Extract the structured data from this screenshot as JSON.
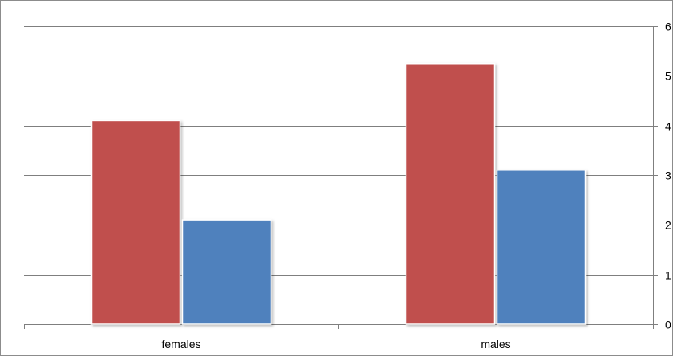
{
  "chart_data": {
    "type": "bar",
    "categories": [
      "females",
      "males"
    ],
    "series": [
      {
        "values": [
          4.1,
          5.25
        ],
        "color": "#c0504d"
      },
      {
        "values": [
          2.1,
          3.1
        ],
        "color": "#4f81bd"
      }
    ],
    "ylim": [
      0,
      6
    ],
    "yticks": [
      "0",
      "1",
      "2",
      "3",
      "4",
      "5",
      "6"
    ],
    "y_axis_side": "right",
    "grid": true
  }
}
